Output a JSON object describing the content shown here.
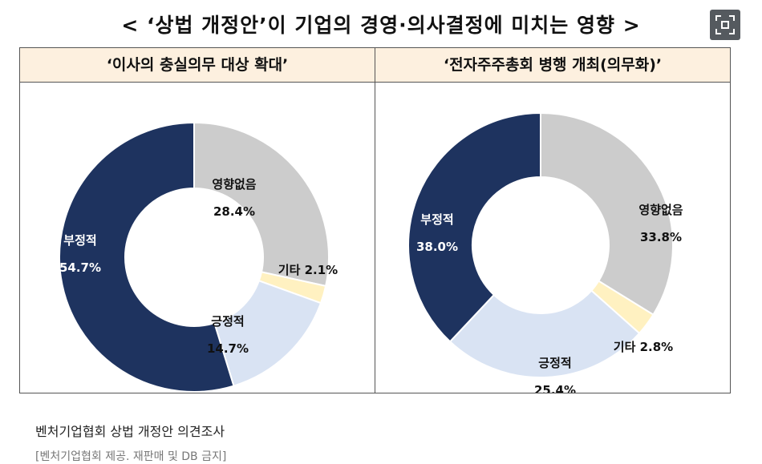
{
  "title": "< ‘상법 개정안’이 기업의 경영·의사결정에 미치는 영향 >",
  "caption": "벤처기업협회 상법 개정안 의견조사",
  "credit": "[벤처기업협회 제공. 재판매 및 DB 금지]",
  "colors": {
    "negative": "#1e335f",
    "no_effect": "#cccccc",
    "other": "#fff1c1",
    "positive": "#d9e3f3",
    "header_bg": "#fdf0df"
  },
  "chart_data": [
    {
      "type": "pie",
      "donut": true,
      "title": "‘이사의 충실의무 대상 확대’",
      "slices": [
        {
          "label": "영향없음",
          "value": 28.4,
          "display": "28.4%",
          "color": "#cccccc"
        },
        {
          "label": "기타",
          "value": 2.1,
          "display": "2.1%",
          "color": "#fff1c1"
        },
        {
          "label": "긍정적",
          "value": 14.7,
          "display": "14.7%",
          "color": "#d9e3f3"
        },
        {
          "label": "부정적",
          "value": 54.7,
          "display": "54.7%",
          "color": "#1e335f"
        }
      ]
    },
    {
      "type": "pie",
      "donut": true,
      "title": "‘전자주주총회 병행 개최(의무화)’",
      "slices": [
        {
          "label": "영향없음",
          "value": 33.8,
          "display": "33.8%",
          "color": "#cccccc"
        },
        {
          "label": "기타",
          "value": 2.8,
          "display": "2.8%",
          "color": "#fff1c1"
        },
        {
          "label": "긍정적",
          "value": 25.4,
          "display": "25.4%",
          "color": "#d9e3f3"
        },
        {
          "label": "부정적",
          "value": 38.0,
          "display": "38.0%",
          "color": "#1e335f"
        }
      ]
    }
  ]
}
